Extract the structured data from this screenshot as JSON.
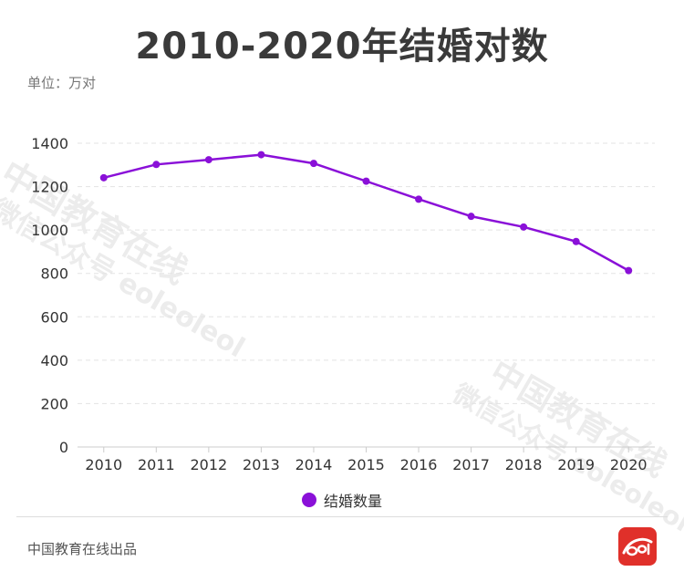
{
  "title": "2010-2020年结婚对数",
  "unit_label": "单位：万对",
  "footer": "中国教育在线出品",
  "watermark": {
    "main": "中国教育在线",
    "sub": "微信公众号 eoleoleol"
  },
  "colors": {
    "series": "#8a10d8",
    "grid": "#e3e3e3",
    "axis": "#cccccc",
    "logo": "#e0302a"
  },
  "chart_data": {
    "type": "line",
    "x": [
      "2010",
      "2011",
      "2012",
      "2013",
      "2014",
      "2015",
      "2016",
      "2017",
      "2018",
      "2019",
      "2020"
    ],
    "series": [
      {
        "name": "结婚数量",
        "values": [
          1241,
          1302,
          1324,
          1347,
          1307,
          1225,
          1142,
          1063,
          1014,
          947,
          813
        ]
      }
    ],
    "ylim": [
      0,
      1400
    ],
    "yticks": [
      0,
      200,
      400,
      600,
      800,
      1000,
      1200,
      1400
    ],
    "grid": true,
    "legend": "bottom-center"
  }
}
